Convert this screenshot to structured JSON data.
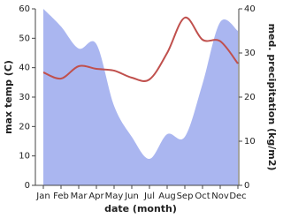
{
  "chart_data": {
    "type": "line-area",
    "x_label": "date (month)",
    "y_label": "max temp (C)",
    "y2_label": "med. precipitation (kg/m2)",
    "categories": [
      "Jan",
      "Feb",
      "Mar",
      "Apr",
      "May",
      "Jun",
      "Jul",
      "Aug",
      "Sep",
      "Oct",
      "Nov",
      "Dec"
    ],
    "series": [
      {
        "name": "max temp",
        "color": "#c0504d",
        "kind": "line",
        "values": [
          38.4,
          36.3,
          40.5,
          39.6,
          39,
          36.6,
          36,
          45,
          57,
          49.5,
          49,
          41.4
        ]
      },
      {
        "name": "med. precipitation",
        "color": "#aab6f0",
        "kind": "area",
        "axis": "y2",
        "values": [
          40,
          36,
          31,
          32,
          18,
          11,
          6,
          11.6,
          11,
          23,
          37,
          35
        ]
      }
    ],
    "ylim": [
      0,
      60
    ],
    "yticks": [
      0,
      10,
      20,
      30,
      40,
      50,
      60
    ],
    "y2lim": [
      0,
      40
    ],
    "y2ticks": [
      0,
      10,
      20,
      30,
      40
    ]
  }
}
